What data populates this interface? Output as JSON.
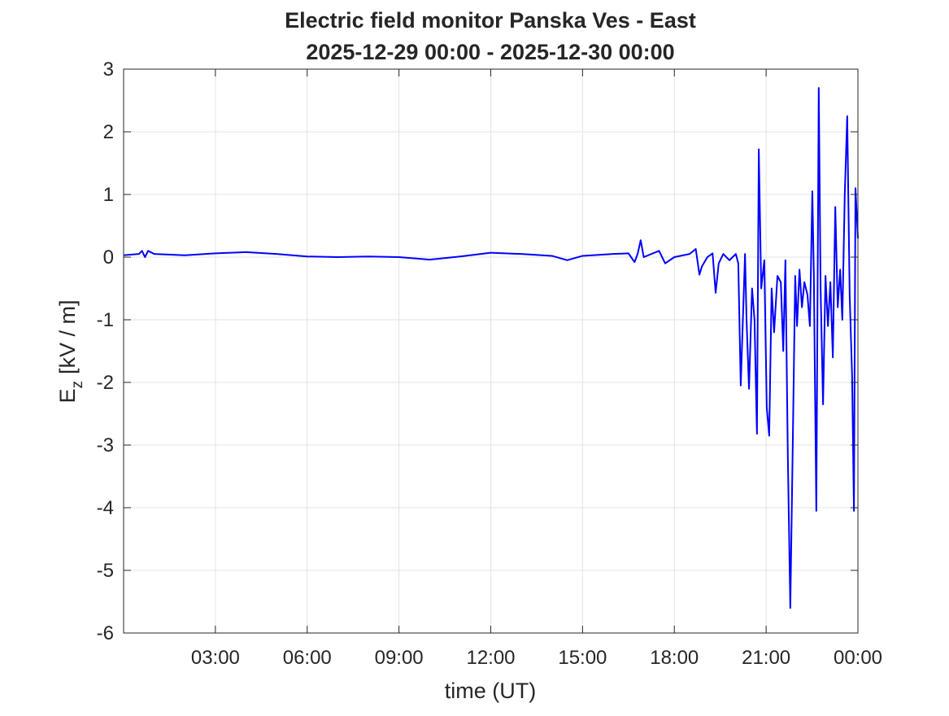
{
  "chart_data": {
    "type": "line",
    "title": "Electric field monitor Panska Ves - East",
    "subtitle": "2025-12-29 00:00 - 2025-12-30 00:00",
    "xlabel": "time (UT)",
    "ylabel": "E",
    "ylabel_sub": "z",
    "ylabel_unit": "[kV / m]",
    "xlim": [
      0,
      24
    ],
    "ylim": [
      -6,
      3
    ],
    "xticks": [
      {
        "value": 3,
        "label": "03:00"
      },
      {
        "value": 6,
        "label": "06:00"
      },
      {
        "value": 9,
        "label": "09:00"
      },
      {
        "value": 12,
        "label": "12:00"
      },
      {
        "value": 15,
        "label": "15:00"
      },
      {
        "value": 18,
        "label": "18:00"
      },
      {
        "value": 21,
        "label": "21:00"
      },
      {
        "value": 24,
        "label": "00:00"
      }
    ],
    "yticks": [
      -6,
      -5,
      -4,
      -3,
      -2,
      -1,
      0,
      1,
      2,
      3
    ],
    "grid": true,
    "series": [
      {
        "color": "#0000ff",
        "x": [
          0,
          0.5,
          0.6,
          0.7,
          0.8,
          1,
          2,
          3,
          4,
          5,
          6,
          7,
          8,
          9,
          10,
          11,
          12,
          13,
          14,
          14.5,
          15,
          16,
          16.5,
          16.7,
          16.8,
          16.9,
          17.0,
          17.5,
          17.7,
          18,
          18.5,
          18.7,
          18.82,
          18.9,
          19.08,
          19.25,
          19.35,
          19.45,
          19.6,
          19.8,
          20.01,
          20.09,
          20.17,
          20.31,
          20.36,
          20.44,
          20.54,
          20.62,
          20.7,
          20.76,
          20.84,
          20.94,
          21.02,
          21.1,
          21.18,
          21.26,
          21.37,
          21.48,
          21.56,
          21.63,
          21.71,
          21.79,
          21.87,
          21.95,
          22.01,
          22.09,
          22.17,
          22.25,
          22.35,
          22.43,
          22.51,
          22.56,
          22.64,
          22.72,
          22.78,
          22.86,
          22.94,
          23.02,
          23.1,
          23.18,
          23.26,
          23.34,
          23.42,
          23.49,
          23.57,
          23.65,
          23.73,
          23.81,
          23.87,
          23.92,
          24.0
        ],
        "values": [
          0.03,
          0.05,
          0.1,
          0.0,
          0.1,
          0.05,
          0.03,
          0.06,
          0.08,
          0.05,
          0.01,
          0.0,
          0.01,
          0.0,
          -0.04,
          0.01,
          0.07,
          0.05,
          0.02,
          -0.05,
          0.02,
          0.05,
          0.06,
          -0.08,
          0.05,
          0.27,
          0.0,
          0.1,
          -0.1,
          0.0,
          0.05,
          0.13,
          -0.28,
          -0.15,
          0.0,
          0.06,
          -0.57,
          -0.1,
          0.05,
          -0.05,
          0.05,
          -0.1,
          -2.05,
          0.05,
          -1.0,
          -2.1,
          -0.5,
          -1.0,
          -2.82,
          1.72,
          -0.5,
          -0.05,
          -2.4,
          -2.85,
          -0.5,
          -1.2,
          -0.3,
          -0.4,
          -1.5,
          -0.05,
          -3.2,
          -5.6,
          -3.0,
          -0.3,
          -1.1,
          -0.2,
          -0.8,
          -0.4,
          -0.6,
          -1.1,
          1.05,
          -0.3,
          -4.05,
          2.7,
          -0.5,
          -2.35,
          -0.3,
          -1.1,
          -0.4,
          -1.6,
          0.8,
          -0.8,
          -0.2,
          -1.0,
          1.0,
          2.25,
          -0.6,
          -1.9,
          -4.05,
          1.1,
          0.3
        ]
      }
    ]
  }
}
